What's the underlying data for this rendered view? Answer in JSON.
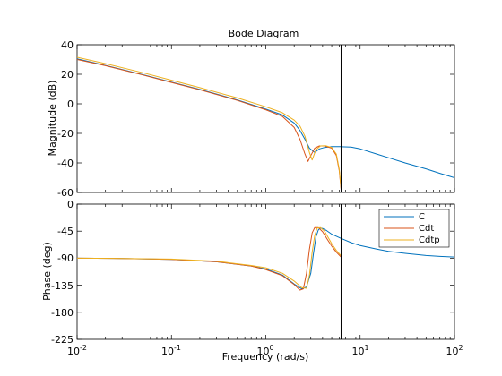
{
  "chart_data": [
    {
      "type": "line",
      "title": "Bode Diagram",
      "xlabel": "Frequency  (rad/s)",
      "ylabel": "Magnitude (dB)",
      "xscale": "log",
      "xlim": [
        0.01,
        100
      ],
      "ylim": [
        -60,
        40
      ],
      "xtick_labels": [
        "10^-2",
        "10^-1",
        "10^0",
        "10^1",
        "10^2"
      ],
      "ytick_labels": [
        "40",
        "20",
        "0",
        "-20",
        "-40",
        "-60"
      ],
      "vertical_line_x": 6.28,
      "series": [
        {
          "name": "C",
          "color": "#0072BD",
          "x": [
            0.01,
            0.02,
            0.05,
            0.1,
            0.2,
            0.5,
            1.0,
            1.5,
            2.0,
            2.3,
            2.6,
            2.9,
            3.3,
            3.7,
            4.2,
            5.0,
            6.28,
            8.0,
            10,
            15,
            20,
            30,
            50,
            70,
            100
          ],
          "y": [
            30.5,
            26,
            19.7,
            14.7,
            9.8,
            2.6,
            -3.5,
            -7.5,
            -13,
            -18,
            -24,
            -30,
            -33,
            -30.5,
            -29.5,
            -29,
            -29,
            -29.3,
            -30.5,
            -34,
            -36.5,
            -40,
            -44,
            -47,
            -50
          ]
        },
        {
          "name": "Cdt",
          "color": "#D95319",
          "x": [
            0.01,
            0.02,
            0.05,
            0.1,
            0.2,
            0.5,
            1.0,
            1.5,
            2.0,
            2.3,
            2.6,
            2.8,
            3.0,
            3.3,
            3.7,
            4.2,
            5.0,
            5.6,
            6.0,
            6.28
          ],
          "y": [
            30,
            25.8,
            19.5,
            14.5,
            9.5,
            2.3,
            -4,
            -8.5,
            -16,
            -24,
            -34,
            -39,
            -35,
            -30,
            -28.5,
            -28.5,
            -30,
            -35,
            -45,
            -58
          ]
        },
        {
          "name": "Cdtp",
          "color": "#EDB120",
          "x": [
            0.01,
            0.02,
            0.05,
            0.1,
            0.2,
            0.5,
            1.0,
            1.5,
            2.0,
            2.3,
            2.6,
            2.9,
            3.1,
            3.4,
            3.8,
            4.3,
            5.0,
            5.6,
            6.0,
            6.28
          ],
          "y": [
            31.5,
            27.2,
            21,
            16,
            11,
            4,
            -2,
            -6,
            -11,
            -15,
            -22,
            -33,
            -38,
            -31,
            -28.5,
            -28.3,
            -29.5,
            -34,
            -44,
            -57
          ]
        }
      ]
    },
    {
      "type": "line",
      "xlabel": "Frequency  (rad/s)",
      "ylabel": "Phase (deg)",
      "xscale": "log",
      "xlim": [
        0.01,
        100
      ],
      "ylim": [
        -225,
        0
      ],
      "xtick_labels": [
        "10^-2",
        "10^-1",
        "10^0",
        "10^1",
        "10^2"
      ],
      "ytick_labels": [
        "0",
        "-45",
        "-90",
        "-135",
        "-180",
        "-225"
      ],
      "vertical_line_x": 6.28,
      "legend": {
        "position": "top-right",
        "entries": [
          "C",
          "Cdt",
          "Cdtp"
        ]
      },
      "series": [
        {
          "name": "C",
          "color": "#0072BD",
          "x": [
            0.01,
            0.03,
            0.1,
            0.3,
            0.7,
            1.0,
            1.5,
            2.0,
            2.4,
            2.7,
            3.0,
            3.2,
            3.4,
            3.6,
            3.8,
            4.0,
            4.4,
            5.0,
            6.28,
            8.0,
            10,
            15,
            20,
            30,
            50,
            70,
            100
          ],
          "y": [
            -90,
            -90.5,
            -92,
            -96,
            -103,
            -108,
            -118,
            -133,
            -141,
            -138,
            -115,
            -82,
            -55,
            -43,
            -40,
            -40.5,
            -44,
            -50,
            -57,
            -64,
            -69,
            -75,
            -78.5,
            -82,
            -85.5,
            -87,
            -88
          ]
        },
        {
          "name": "Cdt",
          "color": "#D95319",
          "x": [
            0.01,
            0.03,
            0.1,
            0.3,
            0.7,
            1.0,
            1.5,
            2.0,
            2.3,
            2.5,
            2.7,
            2.9,
            3.1,
            3.3,
            3.6,
            4.0,
            4.5,
            5.0,
            5.6,
            6.28
          ],
          "y": [
            -90,
            -90.5,
            -92,
            -96,
            -103,
            -109,
            -119,
            -134,
            -143,
            -141,
            -115,
            -75,
            -48,
            -39,
            -39,
            -46,
            -59,
            -70,
            -80,
            -88
          ]
        },
        {
          "name": "Cdtp",
          "color": "#EDB120",
          "x": [
            0.01,
            0.03,
            0.1,
            0.3,
            0.7,
            1.0,
            1.5,
            2.0,
            2.4,
            2.7,
            2.9,
            3.1,
            3.3,
            3.5,
            3.8,
            4.2,
            4.6,
            5.0,
            5.6,
            6.28
          ],
          "y": [
            -90,
            -90.5,
            -91.5,
            -95,
            -102,
            -106,
            -115,
            -128,
            -139,
            -140,
            -118,
            -80,
            -52,
            -40,
            -39,
            -45,
            -56,
            -66,
            -77,
            -86
          ]
        }
      ]
    }
  ]
}
